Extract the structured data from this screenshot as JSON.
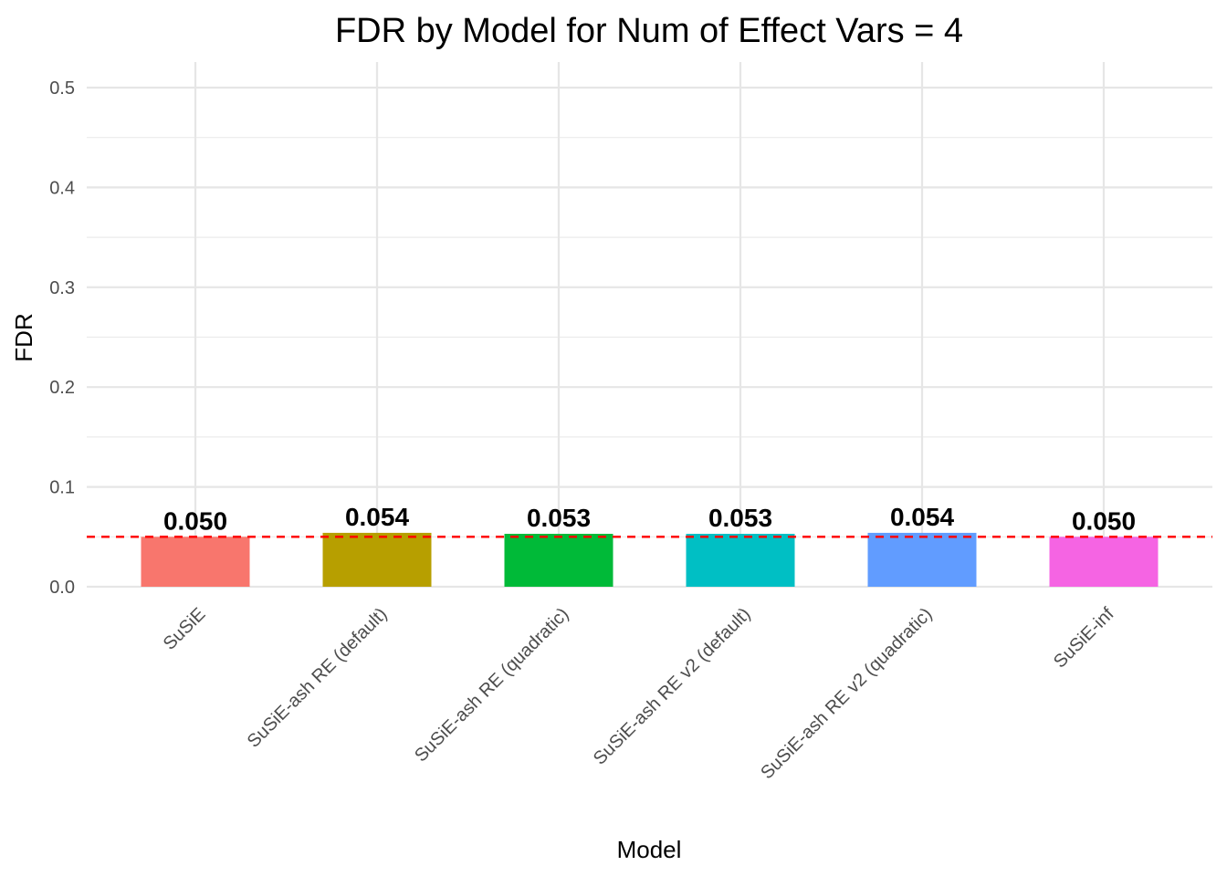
{
  "chart_data": {
    "type": "bar",
    "title": "FDR by Model for Num of Effect Vars = 4",
    "xlabel": "Model",
    "ylabel": "FDR",
    "categories": [
      "SuSiE",
      "SuSiE-ash RE (default)",
      "SuSiE-ash RE (quadratic)",
      "SuSiE-ash RE v2 (default)",
      "SuSiE-ash RE v2 (quadratic)",
      "SuSiE-inf"
    ],
    "values": [
      0.05,
      0.054,
      0.053,
      0.053,
      0.054,
      0.05
    ],
    "value_labels": [
      "0.050",
      "0.054",
      "0.053",
      "0.053",
      "0.054",
      "0.050"
    ],
    "colors": [
      "#F8766D",
      "#B79F00",
      "#00BA38",
      "#00BFC4",
      "#619CFF",
      "#F564E3"
    ],
    "ylim": [
      0,
      0.5
    ],
    "yticks": [
      0.0,
      0.1,
      0.2,
      0.3,
      0.4,
      0.5
    ],
    "ytick_labels": [
      "0.0",
      "0.1",
      "0.2",
      "0.3",
      "0.4",
      "0.5"
    ],
    "reference_line": {
      "y": 0.05,
      "color": "#ff0000",
      "style": "dashed"
    },
    "grid": true,
    "legend": "none"
  }
}
